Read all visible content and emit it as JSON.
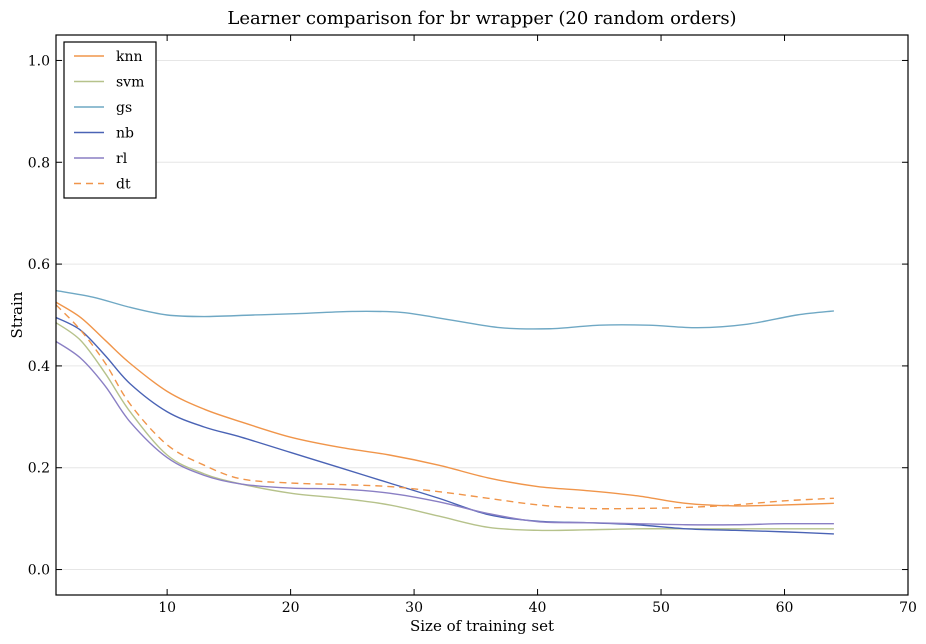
{
  "chart_data": {
    "type": "line",
    "title": "Learner comparison for br wrapper (20 random orders)",
    "xlabel": "Size of training set",
    "ylabel": "Strain",
    "xlim": [
      1,
      70
    ],
    "ylim": [
      -0.05,
      1.05
    ],
    "xticks": [
      10,
      20,
      30,
      40,
      50,
      60,
      70
    ],
    "yticks": [
      0.0,
      0.2,
      0.4,
      0.6,
      0.8,
      1.0
    ],
    "grid": "horizontal",
    "legend_position": "top-left",
    "series": [
      {
        "name": "knn",
        "color": "#f0954a",
        "dash": "solid",
        "x": [
          1,
          3,
          5,
          7,
          10,
          13,
          16,
          20,
          24,
          28,
          32,
          36,
          40,
          44,
          48,
          52,
          56,
          60,
          64
        ],
        "y": [
          0.525,
          0.495,
          0.45,
          0.405,
          0.35,
          0.315,
          0.29,
          0.26,
          0.24,
          0.225,
          0.205,
          0.18,
          0.163,
          0.155,
          0.145,
          0.13,
          0.125,
          0.127,
          0.13
        ]
      },
      {
        "name": "svm",
        "color": "#b6c28b",
        "dash": "solid",
        "x": [
          1,
          3,
          5,
          7,
          10,
          13,
          16,
          20,
          24,
          28,
          32,
          36,
          40,
          44,
          48,
          52,
          56,
          60,
          64
        ],
        "y": [
          0.485,
          0.45,
          0.385,
          0.31,
          0.225,
          0.188,
          0.168,
          0.15,
          0.14,
          0.127,
          0.105,
          0.083,
          0.077,
          0.078,
          0.08,
          0.08,
          0.08,
          0.08,
          0.08
        ]
      },
      {
        "name": "gs",
        "color": "#6fa8c4",
        "dash": "solid",
        "x": [
          1,
          4,
          7,
          10,
          13,
          17,
          21,
          25,
          29,
          33,
          37,
          41,
          45,
          49,
          53,
          57,
          61,
          64
        ],
        "y": [
          0.548,
          0.535,
          0.515,
          0.5,
          0.497,
          0.5,
          0.503,
          0.507,
          0.505,
          0.49,
          0.475,
          0.473,
          0.48,
          0.48,
          0.475,
          0.482,
          0.5,
          0.508
        ]
      },
      {
        "name": "nb",
        "color": "#4a63b5",
        "dash": "solid",
        "x": [
          1,
          3,
          5,
          7,
          10,
          13,
          16,
          20,
          24,
          28,
          32,
          36,
          40,
          44,
          48,
          52,
          56,
          60,
          64
        ],
        "y": [
          0.495,
          0.47,
          0.42,
          0.365,
          0.31,
          0.28,
          0.26,
          0.23,
          0.2,
          0.17,
          0.14,
          0.108,
          0.095,
          0.092,
          0.088,
          0.08,
          0.077,
          0.074,
          0.07
        ]
      },
      {
        "name": "rl",
        "color": "#8a7fc4",
        "dash": "solid",
        "x": [
          1,
          3,
          5,
          7,
          10,
          13,
          16,
          20,
          24,
          28,
          32,
          36,
          40,
          44,
          48,
          52,
          56,
          60,
          64
        ],
        "y": [
          0.448,
          0.415,
          0.36,
          0.29,
          0.22,
          0.185,
          0.168,
          0.16,
          0.158,
          0.15,
          0.133,
          0.11,
          0.094,
          0.092,
          0.09,
          0.088,
          0.088,
          0.09,
          0.09
        ]
      },
      {
        "name": "dt",
        "color": "#f0954a",
        "dash": "dashed",
        "x": [
          1,
          3,
          5,
          7,
          10,
          13,
          16,
          20,
          24,
          28,
          32,
          36,
          40,
          44,
          48,
          52,
          56,
          60,
          64
        ],
        "y": [
          0.52,
          0.47,
          0.405,
          0.325,
          0.245,
          0.205,
          0.178,
          0.17,
          0.167,
          0.163,
          0.153,
          0.14,
          0.127,
          0.12,
          0.12,
          0.122,
          0.127,
          0.135,
          0.14
        ]
      }
    ]
  }
}
